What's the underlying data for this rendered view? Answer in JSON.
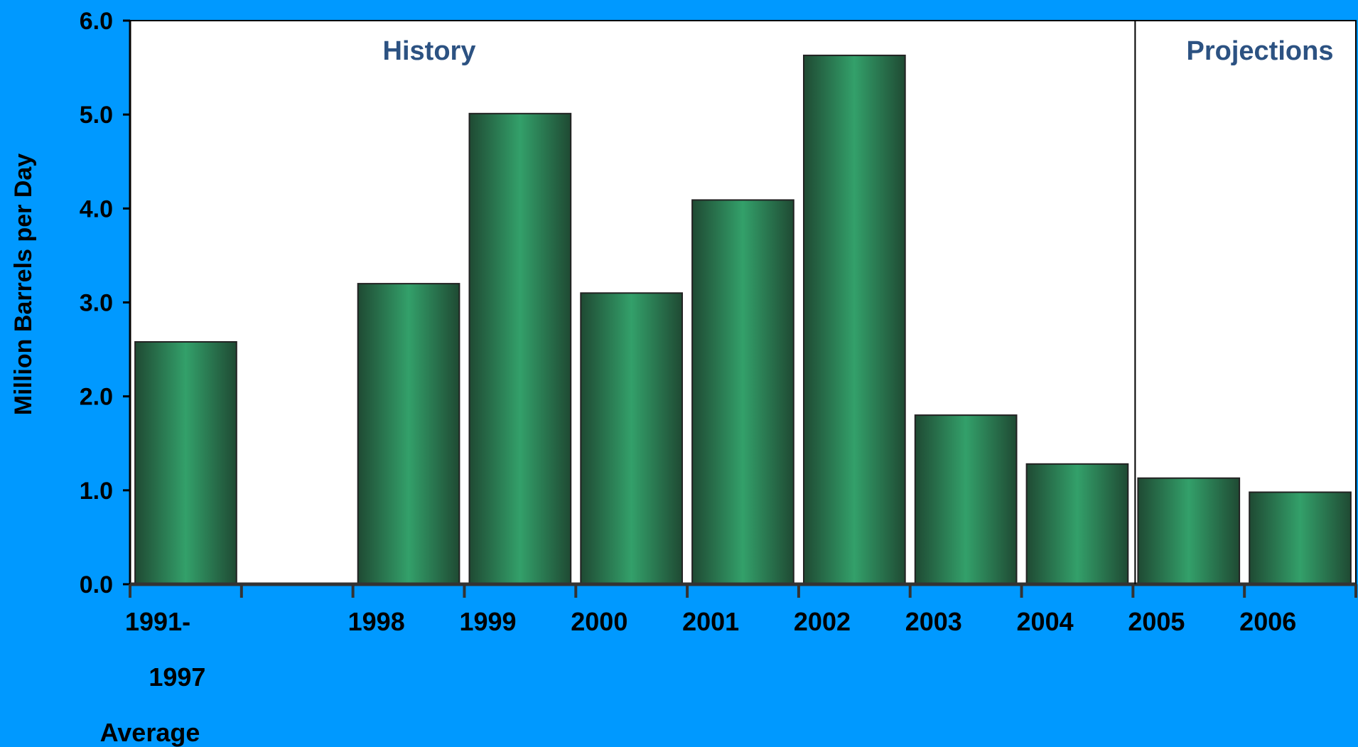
{
  "chart_data": {
    "type": "bar",
    "title": "",
    "xlabel": "",
    "ylabel": "Million Barrels per Day",
    "ylim": [
      0,
      6
    ],
    "yticks": [
      "0.0",
      "1.0",
      "2.0",
      "3.0",
      "4.0",
      "5.0",
      "6.0"
    ],
    "grid": false,
    "categories": [
      [
        "1991-",
        "1997",
        "Average"
      ],
      [
        ""
      ],
      [
        "1998"
      ],
      [
        "1999"
      ],
      [
        "2000"
      ],
      [
        "2001"
      ],
      [
        "2002"
      ],
      [
        "2003"
      ],
      [
        "2004"
      ],
      [
        "2005"
      ],
      [
        "2006"
      ]
    ],
    "values": [
      2.58,
      0,
      3.2,
      5.01,
      3.1,
      4.09,
      5.63,
      1.8,
      1.28,
      1.13,
      0.98
    ],
    "regions": [
      {
        "label": "History"
      },
      {
        "label": "Projections"
      }
    ],
    "colors": {
      "background": "#0099ff",
      "plot_area": "#ffffff",
      "bar_edge": "#1f4a33",
      "bar_mid": "#33a06a",
      "region_text": "#2c5282"
    }
  }
}
